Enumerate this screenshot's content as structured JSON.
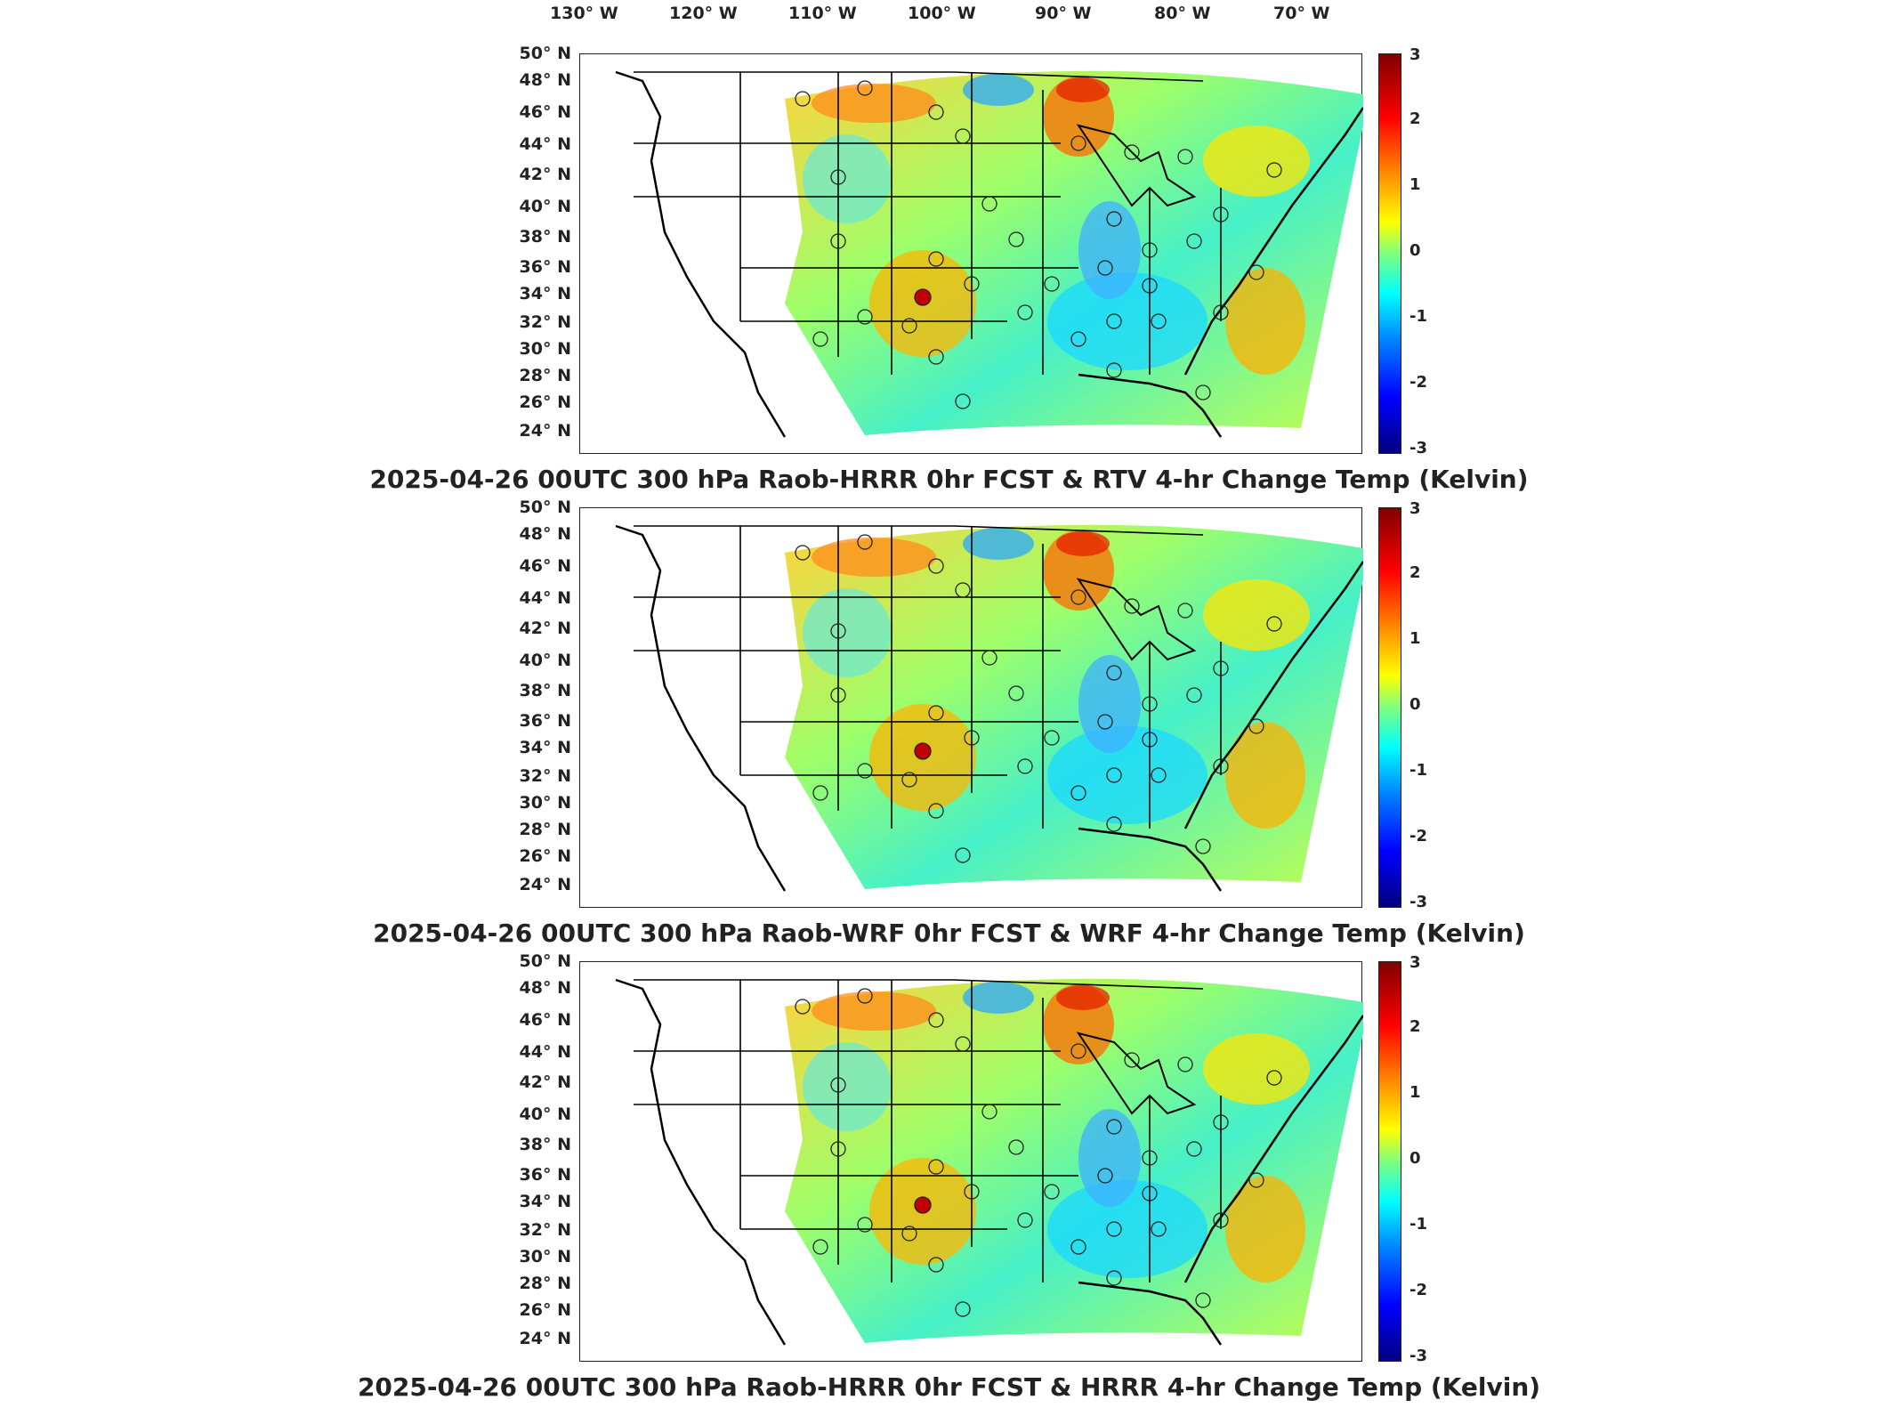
{
  "lon_labels": [
    "130° W",
    "120° W",
    "110° W",
    "100° W",
    "90° W",
    "80° W",
    "70° W"
  ],
  "lat_labels": [
    "50° N",
    "48° N",
    "46° N",
    "44° N",
    "42° N",
    "40° N",
    "38° N",
    "36° N",
    "34° N",
    "32° N",
    "30° N",
    "28° N",
    "26° N",
    "24° N"
  ],
  "colorbar": {
    "ticks": [
      "3",
      "2",
      "1",
      "0",
      "-1",
      "-2",
      "-3"
    ],
    "range": [
      -3,
      3
    ],
    "colormap": "jet"
  },
  "panels": [
    {
      "title": "2025-04-26 00UTC 300 hPa Raob-HRRR 0hr FCST & RTV 4-hr Change Temp (Kelvin)"
    },
    {
      "title": "2025-04-26 00UTC 300 hPa Raob-WRF 0hr FCST & WRF 4-hr Change Temp (Kelvin)"
    },
    {
      "title": "2025-04-26 00UTC 300 hPa Raob-HRRR 0hr FCST & HRRR 4-hr Change Temp (Kelvin)"
    }
  ],
  "colors": {
    "dark_red": "#7f0000",
    "red": "#ff0000",
    "orange": "#ff8c00",
    "yellow": "#ffff00",
    "green": "#7fff7f",
    "cyan": "#00ffff",
    "blue": "#0000ff",
    "station_highlight": "#c00000"
  }
}
